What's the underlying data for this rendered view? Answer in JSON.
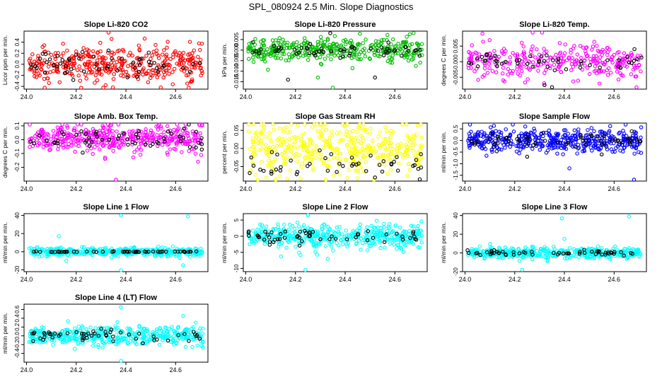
{
  "page": {
    "title": "SPL_080924  2.5 Min. Slope Diagnostics"
  },
  "chart_data": [
    {
      "type": "scatter",
      "title": "Slope Li-820 CO2",
      "ylabel": "Licor ppm per min.",
      "xlim": [
        23.99,
        24.73
      ],
      "ylim": [
        -0.45,
        0.6
      ],
      "xticks": [
        24.0,
        24.2,
        24.4,
        24.6
      ],
      "xtick_labels": [
        "24.0",
        "24.2",
        "24.4",
        "24.6"
      ],
      "yticks": [
        -0.4,
        -0.2,
        0.0,
        0.2,
        0.4
      ],
      "ytick_labels": [
        "-0.4",
        "-0.2",
        "0.0",
        "0.2",
        "0.4"
      ],
      "series": [
        {
          "color": "#ff0000",
          "n": 380,
          "center": 0.0,
          "spread": 0.33,
          "outliers": [
            [
              24.33,
              0.58
            ],
            [
              24.22,
              -0.44
            ],
            [
              24.54,
              -0.42
            ]
          ]
        },
        {
          "color": "#000000",
          "n": 55,
          "center": 0.0,
          "spread": 0.22,
          "outliers": []
        }
      ]
    },
    {
      "type": "scatter",
      "title": "Slope Li-820 Pressure",
      "ylabel": "kPa per min.",
      "xlim": [
        23.99,
        24.73
      ],
      "ylim": [
        -0.0185,
        0.009
      ],
      "xticks": [
        24.0,
        24.2,
        24.4,
        24.6
      ],
      "xtick_labels": [
        "24.0",
        "24.2",
        "24.4",
        "24.6"
      ],
      "yticks": [
        -0.015,
        -0.01,
        -0.005,
        0.0,
        0.005
      ],
      "ytick_labels": [
        "-0.015",
        "-0.010",
        "-0.005",
        "0.000",
        "0.005"
      ],
      "series": [
        {
          "color": "#00bb00",
          "n": 380,
          "center": 0.0,
          "spread": 0.0055,
          "outliers": [
            [
              24.35,
              -0.018
            ],
            [
              24.29,
              -0.013
            ],
            [
              24.66,
              0.0075
            ]
          ]
        },
        {
          "color": "#000000",
          "n": 55,
          "center": 0.0,
          "spread": 0.003,
          "outliers": [
            [
              24.34,
              0.008
            ],
            [
              24.17,
              -0.014
            ],
            [
              24.52,
              -0.013
            ]
          ]
        }
      ]
    },
    {
      "type": "scatter",
      "title": "Slope Li-820 Temp.",
      "ylabel": "degrees C per min.",
      "xlim": [
        23.99,
        24.73
      ],
      "ylim": [
        -0.0088,
        0.0098
      ],
      "xticks": [
        24.0,
        24.2,
        24.4,
        24.6
      ],
      "xtick_labels": [
        "24.0",
        "24.2",
        "24.4",
        "24.6"
      ],
      "yticks": [
        -0.005,
        0.0,
        0.005
      ],
      "ytick_labels": [
        "-0.005",
        "0.000",
        "0.005"
      ],
      "series": [
        {
          "color": "#ff00ff",
          "n": 300,
          "center": 0.0,
          "spread": 0.0055,
          "outliers": [
            [
              24.31,
              0.0095
            ],
            [
              24.07,
              0.009
            ],
            [
              24.69,
              -0.0082
            ]
          ]
        },
        {
          "color": "#000000",
          "n": 50,
          "center": 0.0,
          "spread": 0.003,
          "outliers": [
            [
              24.32,
              -0.0075
            ],
            [
              24.35,
              -0.0082
            ]
          ]
        }
      ]
    },
    {
      "type": "scatter",
      "title": "Slope Amb. Box Temp.",
      "ylabel": "degrees C per min.",
      "xlim": [
        23.99,
        24.73
      ],
      "ylim": [
        -0.3,
        0.12
      ],
      "xticks": [
        24.0,
        24.2,
        24.4,
        24.6
      ],
      "xtick_labels": [
        "24.0",
        "24.2",
        "24.4",
        "24.6"
      ],
      "yticks": [
        -0.2,
        -0.1,
        0.0,
        0.1
      ],
      "ytick_labels": [
        "-0.2",
        "-0.1",
        "0.0",
        "0.1"
      ],
      "series": [
        {
          "color": "#ff00ff",
          "n": 400,
          "center": 0.01,
          "spread": 0.1,
          "outliers": [
            [
              24.36,
              -0.29
            ],
            [
              24.69,
              -0.16
            ],
            [
              24.64,
              0.11
            ]
          ]
        },
        {
          "color": "#000000",
          "n": 55,
          "center": 0.0,
          "spread": 0.07,
          "outliers": []
        }
      ]
    },
    {
      "type": "scatter",
      "title": "Slope Gas Stream RH",
      "ylabel": "percent per min.",
      "xlim": [
        23.99,
        24.73
      ],
      "ylim": [
        -0.09,
        0.07
      ],
      "xticks": [
        24.0,
        24.2,
        24.4,
        24.6
      ],
      "xtick_labels": [
        "24.0",
        "24.2",
        "24.4",
        "24.6"
      ],
      "yticks": [
        -0.05,
        0.0,
        0.05
      ],
      "ytick_labels": [
        "-0.05",
        "0.00",
        "0.05"
      ],
      "series": [
        {
          "color": "#ffff00",
          "n": 420,
          "center": 0.0,
          "spread": 0.075,
          "outliers": [
            [
              24.3,
              0.065
            ],
            [
              24.45,
              -0.082
            ]
          ]
        },
        {
          "color": "#000000",
          "n": 45,
          "center": -0.045,
          "spread": 0.04,
          "outliers": [
            [
              24.7,
              -0.085
            ],
            [
              24.52,
              -0.08
            ]
          ]
        }
      ]
    },
    {
      "type": "scatter",
      "title": "Slope Sample Flow",
      "ylabel": "ml/min per min.",
      "xlim": [
        23.99,
        24.73
      ],
      "ylim": [
        -1.75,
        0.75
      ],
      "xticks": [
        24.0,
        24.2,
        24.4,
        24.6
      ],
      "xtick_labels": [
        "24.0",
        "24.2",
        "24.4",
        "24.6"
      ],
      "yticks": [
        -1.5,
        -1.0,
        -0.5,
        0.0,
        0.5
      ],
      "ytick_labels": [
        "-1.5",
        "-1.0",
        "-0.5",
        "0.0",
        "0.5"
      ],
      "series": [
        {
          "color": "#0000ff",
          "n": 420,
          "center": 0.0,
          "spread": 0.5,
          "outliers": [
            [
              24.42,
              -1.2
            ],
            [
              24.68,
              -1.7
            ],
            [
              24.02,
              0.7
            ]
          ]
        },
        {
          "color": "#000000",
          "n": 55,
          "center": 0.0,
          "spread": 0.3,
          "outliers": [
            [
              24.25,
              -0.7
            ],
            [
              24.55,
              -0.6
            ]
          ]
        }
      ]
    },
    {
      "type": "scatter",
      "title": "Slope Line 1 Flow",
      "ylabel": "ml/min per min.",
      "xlim": [
        23.99,
        24.73
      ],
      "ylim": [
        -22,
        42
      ],
      "xticks": [
        24.0,
        24.2,
        24.4,
        24.6
      ],
      "xtick_labels": [
        "24.0",
        "24.2",
        "24.4",
        "24.6"
      ],
      "yticks": [
        -20,
        0,
        20,
        40
      ],
      "ytick_labels": [
        "-20",
        "0",
        "20",
        "40"
      ],
      "series": [
        {
          "color": "#00ffff",
          "n": 420,
          "center": 0.0,
          "spread": 4.5,
          "outliers": [
            [
              24.38,
              40
            ],
            [
              24.65,
              39
            ],
            [
              24.38,
              -21
            ],
            [
              24.13,
              17
            ],
            [
              24.16,
              -10
            ],
            [
              24.63,
              -15
            ]
          ]
        },
        {
          "color": "#000000",
          "n": 55,
          "center": 0.0,
          "spread": 0.5,
          "outliers": []
        }
      ]
    },
    {
      "type": "scatter",
      "title": "Slope Line 2 Flow",
      "ylabel": "ml/min per min.",
      "xlim": [
        23.99,
        24.73
      ],
      "ylim": [
        -11,
        7
      ],
      "xticks": [
        24.0,
        24.2,
        24.4,
        24.6
      ],
      "xtick_labels": [
        "24.0",
        "24.2",
        "24.4",
        "24.6"
      ],
      "yticks": [
        -10,
        -5,
        0,
        5
      ],
      "ytick_labels": [
        "-10",
        "-5",
        "0",
        "5"
      ],
      "series": [
        {
          "color": "#00ffff",
          "n": 420,
          "center": 0.0,
          "spread": 3.6,
          "outliers": [
            [
              24.25,
              6.5
            ],
            [
              24.24,
              -10.5
            ],
            [
              24.33,
              -7
            ]
          ]
        },
        {
          "color": "#000000",
          "n": 55,
          "center": 0.0,
          "spread": 2.0,
          "outliers": []
        }
      ]
    },
    {
      "type": "scatter",
      "title": "Slope Line 3 Flow",
      "ylabel": "ml/min per min.",
      "xlim": [
        23.99,
        24.73
      ],
      "ylim": [
        -20,
        42
      ],
      "xticks": [
        24.0,
        24.2,
        24.4,
        24.6
      ],
      "xtick_labels": [
        "24.0",
        "24.2",
        "24.4",
        "24.6"
      ],
      "yticks": [
        -20,
        0,
        20,
        40
      ],
      "ytick_labels": [
        "-20",
        "0",
        "20",
        "40"
      ],
      "series": [
        {
          "color": "#00ffff",
          "n": 420,
          "center": 0.0,
          "spread": 6,
          "outliers": [
            [
              24.39,
              37
            ],
            [
              24.66,
              39
            ],
            [
              24.23,
              -18
            ],
            [
              24.4,
              15
            ]
          ]
        },
        {
          "color": "#000000",
          "n": 55,
          "center": 0.0,
          "spread": 3,
          "outliers": []
        }
      ]
    },
    {
      "type": "scatter",
      "title": "Slope Line 4 (LT) Flow",
      "ylabel": "ml/min per min.",
      "xlim": [
        23.99,
        24.73
      ],
      "ylim": [
        -0.6,
        0.72
      ],
      "xticks": [
        24.0,
        24.2,
        24.4,
        24.6
      ],
      "xtick_labels": [
        "24.0",
        "24.2",
        "24.4",
        "24.6"
      ],
      "yticks": [
        -0.4,
        -0.2,
        0.0,
        0.2,
        0.4,
        0.6
      ],
      "ytick_labels": [
        "-0.4",
        "-0.2",
        "0.0",
        "0.2",
        "0.4",
        "0.6"
      ],
      "series": [
        {
          "color": "#00ffff",
          "n": 420,
          "center": 0.0,
          "spread": 0.22,
          "outliers": [
            [
              24.38,
              0.65
            ],
            [
              24.38,
              -0.57
            ],
            [
              24.63,
              0.45
            ]
          ]
        },
        {
          "color": "#000000",
          "n": 55,
          "center": 0.0,
          "spread": 0.14,
          "outliers": []
        }
      ]
    }
  ]
}
